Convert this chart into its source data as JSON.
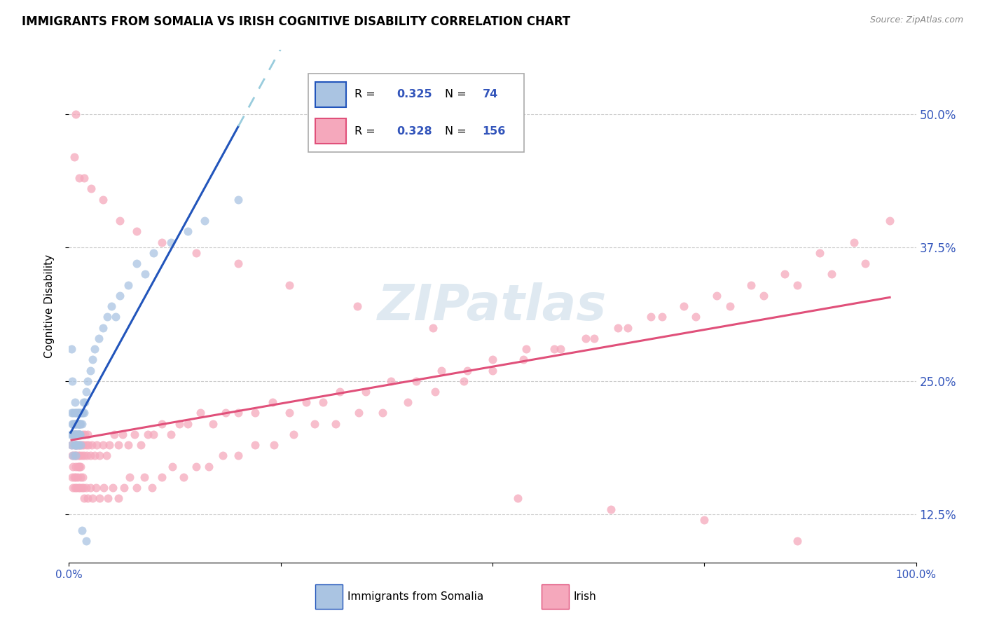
{
  "title": "IMMIGRANTS FROM SOMALIA VS IRISH COGNITIVE DISABILITY CORRELATION CHART",
  "source": "Source: ZipAtlas.com",
  "ylabel": "Cognitive Disability",
  "xlim": [
    0,
    1.0
  ],
  "ylim": [
    0.08,
    0.56
  ],
  "yticks": [
    0.125,
    0.25,
    0.375,
    0.5
  ],
  "ytick_labels": [
    "12.5%",
    "25.0%",
    "37.5%",
    "50.0%"
  ],
  "color_somalia": "#aac4e2",
  "color_irish": "#f5a8bc",
  "color_somalia_line": "#2255bb",
  "color_irish_line": "#e0507a",
  "color_dashed": "#99ccdd",
  "color_axis_labels": "#3355bb",
  "background_color": "#ffffff",
  "grid_color": "#cccccc",
  "title_fontsize": 12,
  "label_fontsize": 11,
  "tick_fontsize": 11,
  "somalia_x": [
    0.002,
    0.003,
    0.003,
    0.004,
    0.004,
    0.005,
    0.005,
    0.005,
    0.006,
    0.006,
    0.006,
    0.007,
    0.007,
    0.007,
    0.008,
    0.008,
    0.008,
    0.008,
    0.009,
    0.009,
    0.009,
    0.009,
    0.01,
    0.01,
    0.01,
    0.011,
    0.011,
    0.011,
    0.012,
    0.012,
    0.012,
    0.013,
    0.013,
    0.014,
    0.014,
    0.015,
    0.015,
    0.016,
    0.017,
    0.018,
    0.019,
    0.02,
    0.022,
    0.025,
    0.028,
    0.03,
    0.035,
    0.04,
    0.045,
    0.05,
    0.055,
    0.06,
    0.07,
    0.08,
    0.09,
    0.1,
    0.12,
    0.14,
    0.16,
    0.2,
    0.003,
    0.004,
    0.005,
    0.006,
    0.007,
    0.008,
    0.009,
    0.01,
    0.011,
    0.012,
    0.013,
    0.014,
    0.015,
    0.02
  ],
  "somalia_y": [
    0.2,
    0.22,
    0.19,
    0.21,
    0.2,
    0.22,
    0.2,
    0.18,
    0.22,
    0.21,
    0.2,
    0.23,
    0.21,
    0.2,
    0.22,
    0.21,
    0.2,
    0.19,
    0.22,
    0.21,
    0.2,
    0.19,
    0.22,
    0.21,
    0.2,
    0.22,
    0.21,
    0.2,
    0.22,
    0.21,
    0.2,
    0.21,
    0.2,
    0.22,
    0.21,
    0.22,
    0.21,
    0.22,
    0.23,
    0.22,
    0.23,
    0.24,
    0.25,
    0.26,
    0.27,
    0.28,
    0.29,
    0.3,
    0.31,
    0.32,
    0.31,
    0.33,
    0.34,
    0.36,
    0.35,
    0.37,
    0.38,
    0.39,
    0.4,
    0.42,
    0.28,
    0.25,
    0.21,
    0.19,
    0.2,
    0.18,
    0.19,
    0.2,
    0.19,
    0.21,
    0.2,
    0.19,
    0.11,
    0.1
  ],
  "irish_x": [
    0.003,
    0.004,
    0.005,
    0.005,
    0.006,
    0.006,
    0.007,
    0.007,
    0.008,
    0.008,
    0.009,
    0.009,
    0.01,
    0.01,
    0.011,
    0.011,
    0.012,
    0.012,
    0.013,
    0.013,
    0.014,
    0.015,
    0.015,
    0.016,
    0.017,
    0.018,
    0.019,
    0.02,
    0.021,
    0.022,
    0.023,
    0.025,
    0.027,
    0.03,
    0.033,
    0.036,
    0.04,
    0.044,
    0.048,
    0.053,
    0.058,
    0.063,
    0.07,
    0.077,
    0.085,
    0.093,
    0.1,
    0.11,
    0.12,
    0.13,
    0.14,
    0.155,
    0.17,
    0.185,
    0.2,
    0.22,
    0.24,
    0.26,
    0.28,
    0.3,
    0.32,
    0.35,
    0.38,
    0.41,
    0.44,
    0.47,
    0.5,
    0.54,
    0.58,
    0.62,
    0.66,
    0.7,
    0.74,
    0.78,
    0.82,
    0.86,
    0.9,
    0.94,
    0.004,
    0.005,
    0.006,
    0.007,
    0.008,
    0.009,
    0.01,
    0.011,
    0.012,
    0.013,
    0.014,
    0.015,
    0.016,
    0.017,
    0.018,
    0.02,
    0.022,
    0.025,
    0.028,
    0.032,
    0.036,
    0.041,
    0.046,
    0.052,
    0.058,
    0.065,
    0.072,
    0.08,
    0.089,
    0.098,
    0.11,
    0.122,
    0.135,
    0.15,
    0.165,
    0.182,
    0.2,
    0.22,
    0.242,
    0.265,
    0.29,
    0.315,
    0.342,
    0.37,
    0.4,
    0.432,
    0.466,
    0.5,
    0.536,
    0.573,
    0.61,
    0.648,
    0.687,
    0.726,
    0.765,
    0.805,
    0.845,
    0.886,
    0.927,
    0.969,
    0.006,
    0.008,
    0.012,
    0.018,
    0.026,
    0.04,
    0.06,
    0.08,
    0.11,
    0.15,
    0.2,
    0.26,
    0.34,
    0.43,
    0.53,
    0.64,
    0.75,
    0.86
  ],
  "irish_y": [
    0.19,
    0.18,
    0.2,
    0.17,
    0.19,
    0.18,
    0.2,
    0.18,
    0.19,
    0.17,
    0.18,
    0.2,
    0.19,
    0.17,
    0.18,
    0.2,
    0.19,
    0.17,
    0.19,
    0.18,
    0.17,
    0.19,
    0.18,
    0.2,
    0.19,
    0.18,
    0.2,
    0.19,
    0.18,
    0.2,
    0.19,
    0.18,
    0.19,
    0.18,
    0.19,
    0.18,
    0.19,
    0.18,
    0.19,
    0.2,
    0.19,
    0.2,
    0.19,
    0.2,
    0.19,
    0.2,
    0.2,
    0.21,
    0.2,
    0.21,
    0.21,
    0.22,
    0.21,
    0.22,
    0.22,
    0.22,
    0.23,
    0.22,
    0.23,
    0.23,
    0.24,
    0.24,
    0.25,
    0.25,
    0.26,
    0.26,
    0.27,
    0.28,
    0.28,
    0.29,
    0.3,
    0.31,
    0.31,
    0.32,
    0.33,
    0.34,
    0.35,
    0.36,
    0.16,
    0.15,
    0.16,
    0.15,
    0.16,
    0.15,
    0.16,
    0.15,
    0.17,
    0.15,
    0.16,
    0.15,
    0.16,
    0.15,
    0.14,
    0.15,
    0.14,
    0.15,
    0.14,
    0.15,
    0.14,
    0.15,
    0.14,
    0.15,
    0.14,
    0.15,
    0.16,
    0.15,
    0.16,
    0.15,
    0.16,
    0.17,
    0.16,
    0.17,
    0.17,
    0.18,
    0.18,
    0.19,
    0.19,
    0.2,
    0.21,
    0.21,
    0.22,
    0.22,
    0.23,
    0.24,
    0.25,
    0.26,
    0.27,
    0.28,
    0.29,
    0.3,
    0.31,
    0.32,
    0.33,
    0.34,
    0.35,
    0.37,
    0.38,
    0.4,
    0.46,
    0.5,
    0.44,
    0.44,
    0.43,
    0.42,
    0.4,
    0.39,
    0.38,
    0.37,
    0.36,
    0.34,
    0.32,
    0.3,
    0.14,
    0.13,
    0.12,
    0.1
  ]
}
